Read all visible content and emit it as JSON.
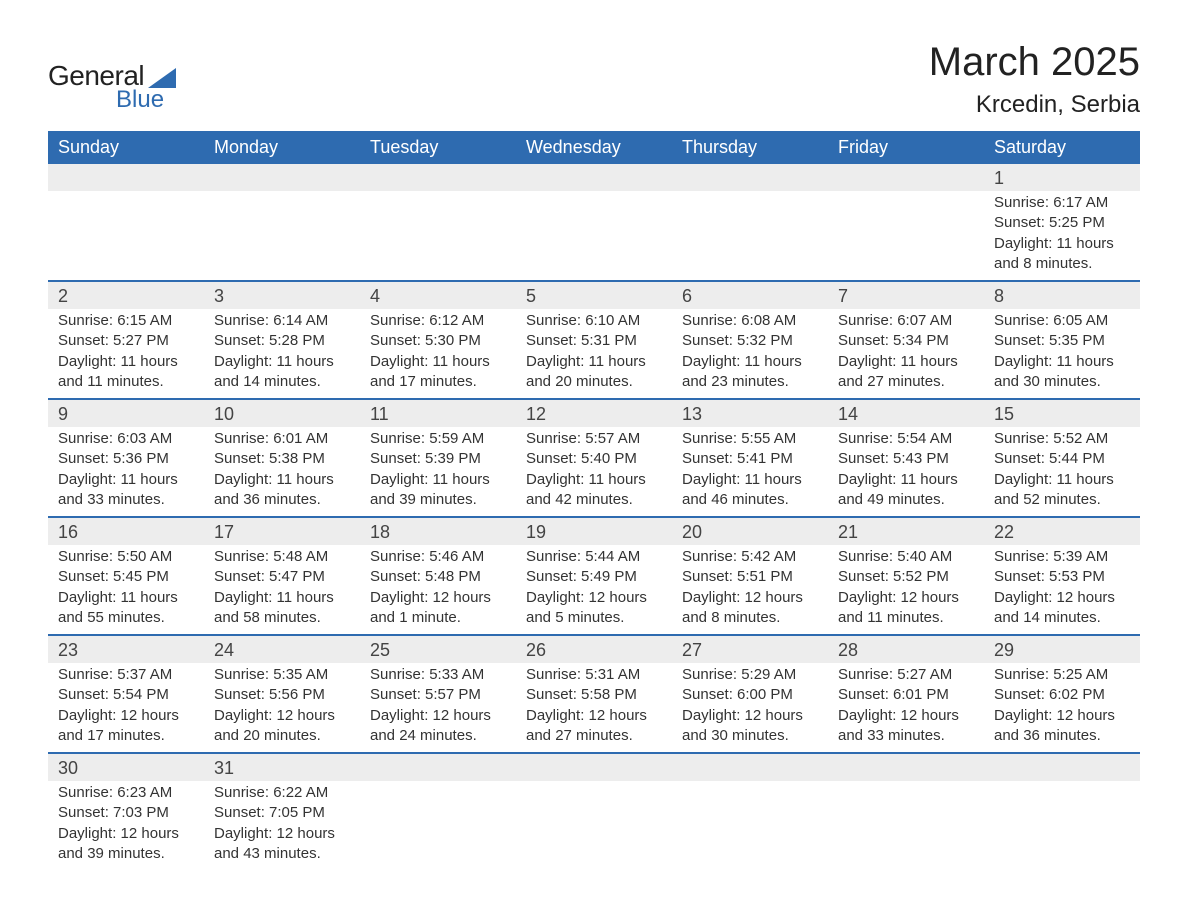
{
  "brand": {
    "text1": "General",
    "text2": "Blue",
    "shape_color": "#2e6bb0"
  },
  "title": "March 2025",
  "location": "Krcedin, Serbia",
  "colors": {
    "header_bg": "#2e6bb0",
    "header_text": "#ffffff",
    "daynum_bg": "#ededed",
    "border": "#2e6bb0",
    "text": "#333333",
    "page_bg": "#ffffff"
  },
  "day_names": [
    "Sunday",
    "Monday",
    "Tuesday",
    "Wednesday",
    "Thursday",
    "Friday",
    "Saturday"
  ],
  "weeks": [
    {
      "nums": [
        "",
        "",
        "",
        "",
        "",
        "",
        "1"
      ],
      "cells": [
        {},
        {},
        {},
        {},
        {},
        {},
        {
          "sunrise": "Sunrise: 6:17 AM",
          "sunset": "Sunset: 5:25 PM",
          "d1": "Daylight: 11 hours",
          "d2": "and 8 minutes."
        }
      ]
    },
    {
      "nums": [
        "2",
        "3",
        "4",
        "5",
        "6",
        "7",
        "8"
      ],
      "cells": [
        {
          "sunrise": "Sunrise: 6:15 AM",
          "sunset": "Sunset: 5:27 PM",
          "d1": "Daylight: 11 hours",
          "d2": "and 11 minutes."
        },
        {
          "sunrise": "Sunrise: 6:14 AM",
          "sunset": "Sunset: 5:28 PM",
          "d1": "Daylight: 11 hours",
          "d2": "and 14 minutes."
        },
        {
          "sunrise": "Sunrise: 6:12 AM",
          "sunset": "Sunset: 5:30 PM",
          "d1": "Daylight: 11 hours",
          "d2": "and 17 minutes."
        },
        {
          "sunrise": "Sunrise: 6:10 AM",
          "sunset": "Sunset: 5:31 PM",
          "d1": "Daylight: 11 hours",
          "d2": "and 20 minutes."
        },
        {
          "sunrise": "Sunrise: 6:08 AM",
          "sunset": "Sunset: 5:32 PM",
          "d1": "Daylight: 11 hours",
          "d2": "and 23 minutes."
        },
        {
          "sunrise": "Sunrise: 6:07 AM",
          "sunset": "Sunset: 5:34 PM",
          "d1": "Daylight: 11 hours",
          "d2": "and 27 minutes."
        },
        {
          "sunrise": "Sunrise: 6:05 AM",
          "sunset": "Sunset: 5:35 PM",
          "d1": "Daylight: 11 hours",
          "d2": "and 30 minutes."
        }
      ]
    },
    {
      "nums": [
        "9",
        "10",
        "11",
        "12",
        "13",
        "14",
        "15"
      ],
      "cells": [
        {
          "sunrise": "Sunrise: 6:03 AM",
          "sunset": "Sunset: 5:36 PM",
          "d1": "Daylight: 11 hours",
          "d2": "and 33 minutes."
        },
        {
          "sunrise": "Sunrise: 6:01 AM",
          "sunset": "Sunset: 5:38 PM",
          "d1": "Daylight: 11 hours",
          "d2": "and 36 minutes."
        },
        {
          "sunrise": "Sunrise: 5:59 AM",
          "sunset": "Sunset: 5:39 PM",
          "d1": "Daylight: 11 hours",
          "d2": "and 39 minutes."
        },
        {
          "sunrise": "Sunrise: 5:57 AM",
          "sunset": "Sunset: 5:40 PM",
          "d1": "Daylight: 11 hours",
          "d2": "and 42 minutes."
        },
        {
          "sunrise": "Sunrise: 5:55 AM",
          "sunset": "Sunset: 5:41 PM",
          "d1": "Daylight: 11 hours",
          "d2": "and 46 minutes."
        },
        {
          "sunrise": "Sunrise: 5:54 AM",
          "sunset": "Sunset: 5:43 PM",
          "d1": "Daylight: 11 hours",
          "d2": "and 49 minutes."
        },
        {
          "sunrise": "Sunrise: 5:52 AM",
          "sunset": "Sunset: 5:44 PM",
          "d1": "Daylight: 11 hours",
          "d2": "and 52 minutes."
        }
      ]
    },
    {
      "nums": [
        "16",
        "17",
        "18",
        "19",
        "20",
        "21",
        "22"
      ],
      "cells": [
        {
          "sunrise": "Sunrise: 5:50 AM",
          "sunset": "Sunset: 5:45 PM",
          "d1": "Daylight: 11 hours",
          "d2": "and 55 minutes."
        },
        {
          "sunrise": "Sunrise: 5:48 AM",
          "sunset": "Sunset: 5:47 PM",
          "d1": "Daylight: 11 hours",
          "d2": "and 58 minutes."
        },
        {
          "sunrise": "Sunrise: 5:46 AM",
          "sunset": "Sunset: 5:48 PM",
          "d1": "Daylight: 12 hours",
          "d2": "and 1 minute."
        },
        {
          "sunrise": "Sunrise: 5:44 AM",
          "sunset": "Sunset: 5:49 PM",
          "d1": "Daylight: 12 hours",
          "d2": "and 5 minutes."
        },
        {
          "sunrise": "Sunrise: 5:42 AM",
          "sunset": "Sunset: 5:51 PM",
          "d1": "Daylight: 12 hours",
          "d2": "and 8 minutes."
        },
        {
          "sunrise": "Sunrise: 5:40 AM",
          "sunset": "Sunset: 5:52 PM",
          "d1": "Daylight: 12 hours",
          "d2": "and 11 minutes."
        },
        {
          "sunrise": "Sunrise: 5:39 AM",
          "sunset": "Sunset: 5:53 PM",
          "d1": "Daylight: 12 hours",
          "d2": "and 14 minutes."
        }
      ]
    },
    {
      "nums": [
        "23",
        "24",
        "25",
        "26",
        "27",
        "28",
        "29"
      ],
      "cells": [
        {
          "sunrise": "Sunrise: 5:37 AM",
          "sunset": "Sunset: 5:54 PM",
          "d1": "Daylight: 12 hours",
          "d2": "and 17 minutes."
        },
        {
          "sunrise": "Sunrise: 5:35 AM",
          "sunset": "Sunset: 5:56 PM",
          "d1": "Daylight: 12 hours",
          "d2": "and 20 minutes."
        },
        {
          "sunrise": "Sunrise: 5:33 AM",
          "sunset": "Sunset: 5:57 PM",
          "d1": "Daylight: 12 hours",
          "d2": "and 24 minutes."
        },
        {
          "sunrise": "Sunrise: 5:31 AM",
          "sunset": "Sunset: 5:58 PM",
          "d1": "Daylight: 12 hours",
          "d2": "and 27 minutes."
        },
        {
          "sunrise": "Sunrise: 5:29 AM",
          "sunset": "Sunset: 6:00 PM",
          "d1": "Daylight: 12 hours",
          "d2": "and 30 minutes."
        },
        {
          "sunrise": "Sunrise: 5:27 AM",
          "sunset": "Sunset: 6:01 PM",
          "d1": "Daylight: 12 hours",
          "d2": "and 33 minutes."
        },
        {
          "sunrise": "Sunrise: 5:25 AM",
          "sunset": "Sunset: 6:02 PM",
          "d1": "Daylight: 12 hours",
          "d2": "and 36 minutes."
        }
      ]
    },
    {
      "nums": [
        "30",
        "31",
        "",
        "",
        "",
        "",
        ""
      ],
      "cells": [
        {
          "sunrise": "Sunrise: 6:23 AM",
          "sunset": "Sunset: 7:03 PM",
          "d1": "Daylight: 12 hours",
          "d2": "and 39 minutes."
        },
        {
          "sunrise": "Sunrise: 6:22 AM",
          "sunset": "Sunset: 7:05 PM",
          "d1": "Daylight: 12 hours",
          "d2": "and 43 minutes."
        },
        {},
        {},
        {},
        {},
        {}
      ]
    }
  ]
}
